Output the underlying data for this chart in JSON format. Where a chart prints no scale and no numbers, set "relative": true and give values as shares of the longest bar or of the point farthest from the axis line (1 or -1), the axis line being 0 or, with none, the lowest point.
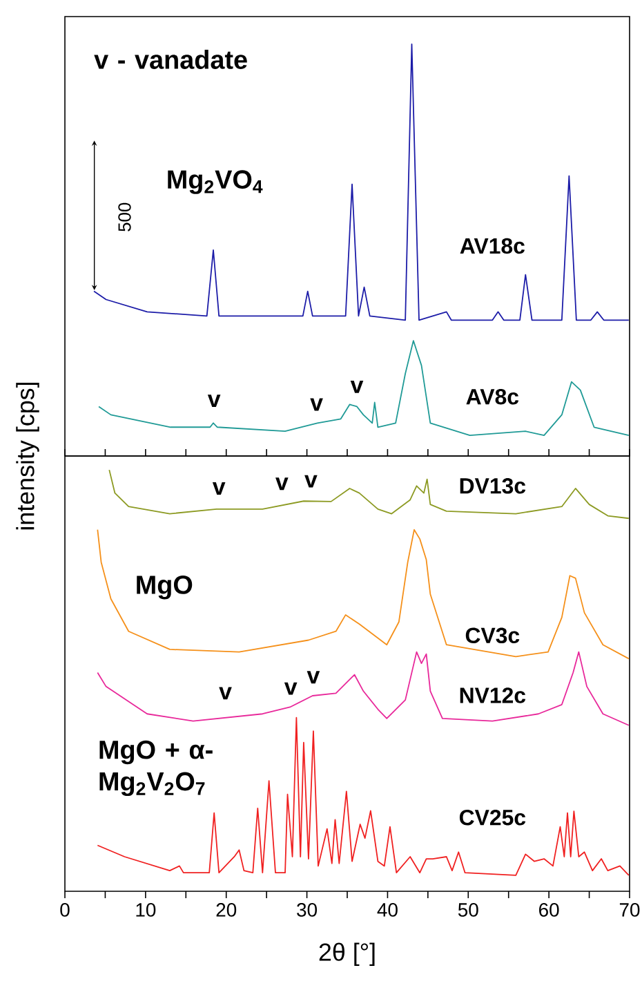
{
  "chart_data": [
    {
      "type": "line",
      "relative": true,
      "ylabel": "intensity [cps]",
      "tick_labels": false,
      "xlim": [
        0,
        70
      ],
      "xticks": [
        0,
        {
          "value": 5,
          "label": null
        },
        10,
        {
          "value": 15,
          "label": null
        },
        20,
        {
          "value": 25,
          "label": null
        },
        30,
        {
          "value": 35,
          "label": null
        },
        40,
        {
          "value": 45,
          "label": null
        },
        50,
        {
          "value": 55,
          "label": null
        },
        60,
        {
          "value": 65,
          "label": null
        },
        70
      ],
      "series": [
        {
          "name": "AV18c",
          "color": "#1c1ca8",
          "x": [
            3.6,
            5.1,
            10.2,
            17.6,
            18.4,
            19.1,
            27.3,
            29.5,
            30.1,
            30.7,
            34.8,
            35.6,
            36.4,
            37.1,
            37.8,
            42.2,
            43.0,
            43.9,
            47.3,
            47.9,
            53.0,
            53.7,
            54.4,
            56.4,
            57.1,
            57.9,
            61.6,
            62.5,
            63.4,
            65.2,
            66.0,
            66.8,
            69.9
          ],
          "values": [
            0.4,
            0.38,
            0.35,
            0.34,
            0.5,
            0.34,
            0.34,
            0.34,
            0.4,
            0.34,
            0.34,
            0.66,
            0.34,
            0.41,
            0.34,
            0.33,
            1.0,
            0.33,
            0.35,
            0.33,
            0.33,
            0.35,
            0.33,
            0.33,
            0.44,
            0.33,
            0.33,
            0.68,
            0.33,
            0.33,
            0.35,
            0.33,
            0.33
          ]
        },
        {
          "name": "AV8c",
          "color": "#1f9a96",
          "x": [
            4.2,
            5.7,
            13.1,
            18.0,
            18.4,
            18.9,
            27.3,
            31.3,
            34.2,
            35.3,
            36.2,
            37.0,
            38.1,
            38.4,
            38.8,
            41.0,
            42.2,
            43.2,
            44.2,
            45.3,
            50.2,
            57.1,
            59.4,
            61.6,
            62.8,
            63.9,
            65.6,
            69.9
          ],
          "values": [
            0.12,
            0.1,
            0.07,
            0.07,
            0.08,
            0.07,
            0.06,
            0.08,
            0.09,
            0.125,
            0.12,
            0.1,
            0.08,
            0.13,
            0.07,
            0.08,
            0.2,
            0.28,
            0.22,
            0.08,
            0.05,
            0.06,
            0.05,
            0.1,
            0.18,
            0.16,
            0.07,
            0.05
          ]
        }
      ],
      "annotations": [
        "v - vanadate",
        "Mg$_{2}$VO$_{4}$",
        "500",
        "v",
        "v",
        "v"
      ]
    },
    {
      "type": "line",
      "relative": true,
      "xlabel": "2θ [°]",
      "tick_labels": "x",
      "xlim": [
        0,
        70
      ],
      "xticks": [
        0,
        {
          "value": 5,
          "label": null
        },
        10,
        {
          "value": 15,
          "label": null
        },
        20,
        {
          "value": 25,
          "label": null
        },
        30,
        {
          "value": 35,
          "label": null
        },
        40,
        {
          "value": 45,
          "label": null
        },
        50,
        {
          "value": 55,
          "label": null
        },
        60,
        {
          "value": 65,
          "label": null
        },
        70
      ],
      "series": [
        {
          "name": "DV13c",
          "color": "#8c9a22",
          "x": [
            5.5,
            6.2,
            7.9,
            13.0,
            18.8,
            24.5,
            29.6,
            33.0,
            35.3,
            36.5,
            38.8,
            40.5,
            42.8,
            43.6,
            44.5,
            44.9,
            45.3,
            47.3,
            55.9,
            61.6,
            63.3,
            65.0,
            67.3,
            69.9
          ],
          "values": [
            1.0,
            0.945,
            0.913,
            0.896,
            0.907,
            0.907,
            0.926,
            0.925,
            0.956,
            0.945,
            0.907,
            0.896,
            0.929,
            0.962,
            0.945,
            0.978,
            0.918,
            0.902,
            0.896,
            0.913,
            0.956,
            0.918,
            0.891,
            0.885
          ]
        },
        {
          "name": "CV3c",
          "color": "#f5901a",
          "x": [
            4.05,
            4.5,
            5.7,
            7.9,
            13.0,
            21.6,
            30.2,
            33.6,
            34.8,
            36.5,
            38.8,
            39.9,
            41.4,
            42.5,
            43.3,
            44.0,
            44.8,
            45.3,
            47.3,
            55.9,
            59.9,
            61.6,
            62.6,
            63.3,
            64.4,
            66.7,
            69.9
          ],
          "values": [
            0.858,
            0.781,
            0.694,
            0.617,
            0.574,
            0.568,
            0.596,
            0.617,
            0.656,
            0.634,
            0.601,
            0.585,
            0.639,
            0.781,
            0.858,
            0.836,
            0.787,
            0.705,
            0.585,
            0.557,
            0.568,
            0.65,
            0.749,
            0.743,
            0.661,
            0.585,
            0.552
          ]
        },
        {
          "name": "NV12c",
          "color": "#e8289a",
          "x": [
            4.05,
            5.1,
            10.2,
            15.9,
            24.5,
            27.9,
            30.7,
            33.6,
            35.9,
            37.0,
            38.8,
            39.9,
            42.2,
            43.6,
            44.2,
            44.8,
            45.3,
            46.8,
            53.0,
            58.7,
            61.6,
            63.0,
            63.7,
            64.7,
            66.7,
            69.9
          ],
          "values": [
            0.519,
            0.486,
            0.421,
            0.404,
            0.421,
            0.437,
            0.464,
            0.47,
            0.514,
            0.475,
            0.432,
            0.41,
            0.454,
            0.568,
            0.541,
            0.563,
            0.475,
            0.41,
            0.404,
            0.421,
            0.443,
            0.519,
            0.568,
            0.486,
            0.421,
            0.394
          ]
        },
        {
          "name": "CV25c",
          "color": "#f02020",
          "x": [
            4.05,
            7.4,
            13.0,
            14.2,
            14.7,
            17.9,
            18.5,
            19.1,
            21.0,
            21.6,
            22.2,
            23.3,
            23.9,
            24.5,
            25.3,
            26.1,
            27.3,
            27.6,
            28.2,
            28.7,
            29.2,
            29.6,
            30.2,
            30.8,
            31.4,
            32.5,
            33.1,
            33.5,
            34.0,
            34.9,
            35.6,
            36.6,
            37.2,
            37.9,
            38.8,
            39.6,
            40.3,
            41.1,
            42.8,
            44.0,
            44.8,
            45.6,
            47.3,
            48.0,
            48.8,
            49.6,
            55.9,
            57.1,
            58.2,
            59.4,
            60.5,
            61.4,
            61.9,
            62.3,
            62.7,
            63.1,
            63.7,
            64.4,
            65.4,
            66.5,
            67.3,
            68.8,
            69.9
          ],
          "values": [
            0.109,
            0.082,
            0.049,
            0.06,
            0.044,
            0.044,
            0.186,
            0.044,
            0.082,
            0.098,
            0.049,
            0.044,
            0.197,
            0.044,
            0.262,
            0.044,
            0.044,
            0.23,
            0.082,
            0.412,
            0.082,
            0.353,
            0.077,
            0.38,
            0.06,
            0.148,
            0.066,
            0.17,
            0.066,
            0.237,
            0.071,
            0.159,
            0.126,
            0.191,
            0.071,
            0.06,
            0.153,
            0.044,
            0.082,
            0.044,
            0.077,
            0.077,
            0.082,
            0.049,
            0.093,
            0.044,
            0.038,
            0.088,
            0.071,
            0.077,
            0.06,
            0.153,
            0.082,
            0.186,
            0.082,
            0.19,
            0.082,
            0.093,
            0.049,
            0.077,
            0.049,
            0.06,
            0.038
          ]
        }
      ],
      "annotations": [
        "MgO",
        "MgO + α-Mg$_{2}$V$_{2}$O$_{7}$",
        "v",
        "v",
        "v",
        "v",
        "v",
        "v"
      ]
    }
  ]
}
